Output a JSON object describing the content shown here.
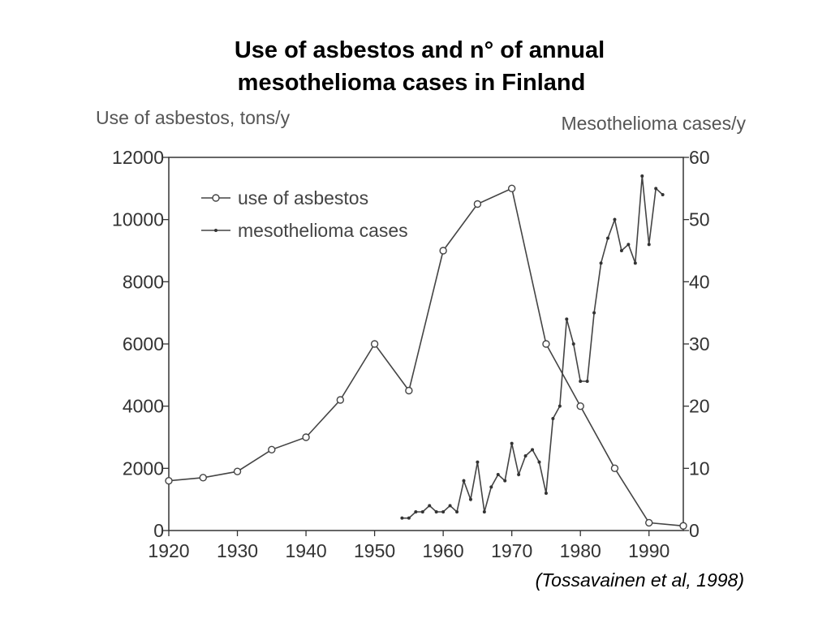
{
  "title": {
    "line1": "Use of asbestos and n° of annual",
    "line2": "mesothelioma cases in Finland"
  },
  "citation": "(Tossavainen et al, 1998)",
  "chart_data": {
    "type": "line",
    "title": "Use of asbestos and n° of annual mesothelioma cases in Finland",
    "xlabel": "",
    "ylabel": "Use of asbestos, tons/y",
    "y2label": "Mesothelioma cases/y",
    "xlim": [
      1920,
      1995
    ],
    "ylim": [
      0,
      12000
    ],
    "y2lim": [
      0,
      60
    ],
    "xticks": [
      1920,
      1930,
      1940,
      1950,
      1960,
      1970,
      1980,
      1990
    ],
    "yticks": [
      0,
      2000,
      4000,
      6000,
      8000,
      10000,
      12000
    ],
    "y2ticks": [
      0,
      10,
      20,
      30,
      40,
      50,
      60
    ],
    "legend_position": "top-left",
    "grid": false,
    "series": [
      {
        "name": "use of asbestos",
        "axis": "left",
        "marker": "open-circle",
        "x": [
          1920,
          1925,
          1930,
          1935,
          1940,
          1945,
          1950,
          1955,
          1960,
          1965,
          1970,
          1975,
          1980,
          1985,
          1990,
          1995
        ],
        "y": [
          1600,
          1700,
          1900,
          2600,
          3000,
          4200,
          6000,
          4500,
          9000,
          10500,
          11000,
          6000,
          4000,
          2000,
          250,
          150
        ]
      },
      {
        "name": "mesothelioma cases",
        "axis": "right",
        "marker": "dot",
        "x": [
          1954,
          1955,
          1956,
          1957,
          1958,
          1959,
          1960,
          1961,
          1962,
          1963,
          1964,
          1965,
          1966,
          1967,
          1968,
          1969,
          1970,
          1971,
          1972,
          1973,
          1974,
          1975,
          1976,
          1977,
          1978,
          1979,
          1980,
          1981,
          1982,
          1983,
          1984,
          1985,
          1986,
          1987,
          1988,
          1989,
          1990,
          1991,
          1992
        ],
        "y": [
          2,
          2,
          3,
          3,
          4,
          3,
          3,
          4,
          3,
          8,
          5,
          11,
          3,
          7,
          9,
          8,
          14,
          9,
          12,
          13,
          11,
          6,
          18,
          20,
          34,
          30,
          24,
          24,
          35,
          43,
          47,
          50,
          45,
          46,
          43,
          57,
          46,
          55,
          54
        ]
      }
    ]
  }
}
